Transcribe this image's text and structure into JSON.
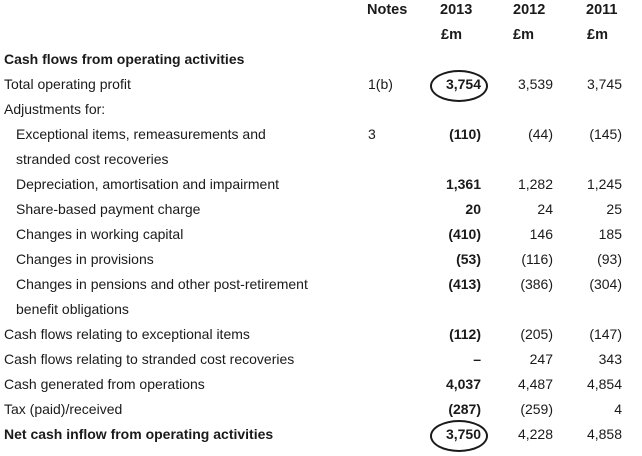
{
  "headers": {
    "notes": "Notes",
    "y2013": "2013",
    "y2012": "2012",
    "y2011": "2011",
    "u2013": "£m",
    "u2012": "£m",
    "u2011": "£m"
  },
  "rows": [
    {
      "label": "Cash flows from operating activities",
      "note": "",
      "v2013": "",
      "v2012": "",
      "v2011": "",
      "bold": true,
      "indent": false
    },
    {
      "label": "Total operating profit",
      "note": "1(b)",
      "v2013": "3,754",
      "v2012": "3,539",
      "v2011": "3,745",
      "bold": false,
      "indent": false
    },
    {
      "label": "Adjustments for:",
      "note": "",
      "v2013": "",
      "v2012": "",
      "v2011": "",
      "bold": false,
      "indent": false
    },
    {
      "label": "Exceptional items, remeasurements and",
      "note": "3",
      "v2013": "(110)",
      "v2012": "(44)",
      "v2011": "(145)",
      "bold": false,
      "indent": true
    },
    {
      "label": "stranded cost recoveries",
      "note": "",
      "v2013": "",
      "v2012": "",
      "v2011": "",
      "bold": false,
      "indent": true
    },
    {
      "label": "Depreciation, amortisation and impairment",
      "note": "",
      "v2013": "1,361",
      "v2012": "1,282",
      "v2011": "1,245",
      "bold": false,
      "indent": true
    },
    {
      "label": "Share-based payment charge",
      "note": "",
      "v2013": "20",
      "v2012": "24",
      "v2011": "25",
      "bold": false,
      "indent": true
    },
    {
      "label": "Changes in working capital",
      "note": "",
      "v2013": "(410)",
      "v2012": "146",
      "v2011": "185",
      "bold": false,
      "indent": true
    },
    {
      "label": "Changes in provisions",
      "note": "",
      "v2013": "(53)",
      "v2012": "(116)",
      "v2011": "(93)",
      "bold": false,
      "indent": true
    },
    {
      "label": "Changes in pensions and other post-retirement",
      "note": "",
      "v2013": "(413)",
      "v2012": "(386)",
      "v2011": "(304)",
      "bold": false,
      "indent": true
    },
    {
      "label": "benefit obligations",
      "note": "",
      "v2013": "",
      "v2012": "",
      "v2011": "",
      "bold": false,
      "indent": true
    },
    {
      "label": "Cash flows relating to exceptional items",
      "note": "",
      "v2013": "(112)",
      "v2012": "(205)",
      "v2011": "(147)",
      "bold": false,
      "indent": false
    },
    {
      "label": "Cash flows relating to stranded cost recoveries",
      "note": "",
      "v2013": "–",
      "v2012": "247",
      "v2011": "343",
      "bold": false,
      "indent": false
    },
    {
      "label": "Cash generated from operations",
      "note": "",
      "v2013": "4,037",
      "v2012": "4,487",
      "v2011": "4,854",
      "bold": false,
      "indent": false
    },
    {
      "label": "Tax (paid)/received",
      "note": "",
      "v2013": "(287)",
      "v2012": "(259)",
      "v2011": "4",
      "bold": false,
      "indent": false
    },
    {
      "label": "Net cash inflow from operating activities",
      "note": "",
      "v2013": "3,750",
      "v2012": "4,228",
      "v2011": "4,858",
      "bold": true,
      "indent": false
    }
  ],
  "circled_values": [
    "3,754",
    "3,750"
  ]
}
